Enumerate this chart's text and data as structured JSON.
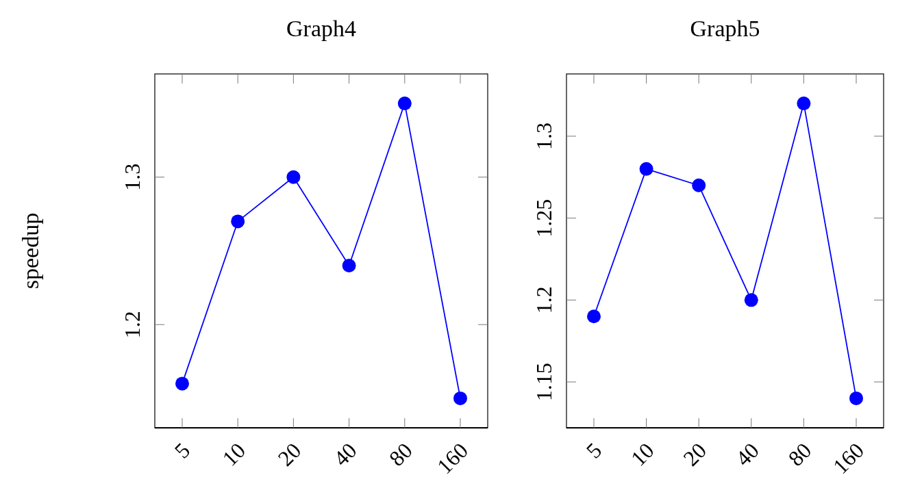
{
  "chart_data": [
    {
      "type": "line",
      "title": "Graph4",
      "ylabel": "speedup",
      "categories": [
        "5",
        "10",
        "20",
        "40",
        "80",
        "160"
      ],
      "series": [
        {
          "color": "#0000ff",
          "values": [
            1.16,
            1.27,
            1.3,
            1.24,
            1.35,
            1.15
          ]
        }
      ],
      "ylim": [
        1.13,
        1.37
      ],
      "yticks": [
        1.2,
        1.3
      ],
      "marker": "circle"
    },
    {
      "type": "line",
      "title": "Graph5",
      "categories": [
        "5",
        "10",
        "20",
        "40",
        "80",
        "160"
      ],
      "series": [
        {
          "color": "#0000ff",
          "values": [
            1.19,
            1.28,
            1.27,
            1.2,
            1.32,
            1.14
          ]
        }
      ],
      "ylim": [
        1.122,
        1.338
      ],
      "yticks": [
        1.15,
        1.2,
        1.25,
        1.3
      ],
      "marker": "circle"
    }
  ]
}
